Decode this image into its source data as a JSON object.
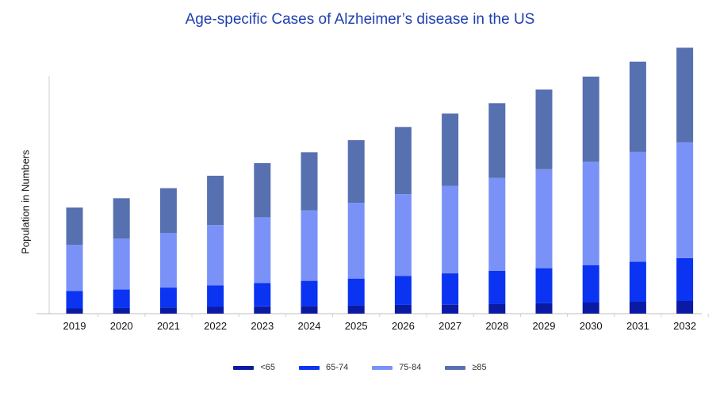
{
  "chart_data": {
    "type": "bar",
    "stacked": true,
    "title": "Age-specific Cases of Alzheimer’s disease in the US",
    "ylabel": "Population in Numbers",
    "xlabel": "",
    "categories": [
      "2019",
      "2020",
      "2021",
      "2022",
      "2023",
      "2024",
      "2025",
      "2026",
      "2027",
      "2028",
      "2029",
      "2030",
      "2031",
      "2032"
    ],
    "ylim": [
      0,
      100
    ],
    "grid": false,
    "legend_position": "bottom",
    "series": [
      {
        "name": "<65",
        "color": "#0a1aa3",
        "values": [
          2.0,
          2.2,
          2.4,
          2.6,
          2.8,
          3.0,
          3.2,
          3.4,
          3.6,
          3.8,
          4.0,
          4.3,
          4.6,
          4.9
        ]
      },
      {
        "name": "65-74",
        "color": "#0a33f2",
        "values": [
          6.8,
          7.2,
          7.7,
          8.3,
          9.0,
          9.7,
          10.4,
          11.2,
          12.0,
          12.8,
          13.6,
          14.5,
          15.5,
          16.6
        ]
      },
      {
        "name": "75-84",
        "color": "#7a92f8",
        "values": [
          17.8,
          19.7,
          21.2,
          23.4,
          25.5,
          27.3,
          29.3,
          31.7,
          33.9,
          35.9,
          38.3,
          40.0,
          42.5,
          44.9
        ]
      },
      {
        "name": "≥85",
        "color": "#5770b0",
        "values": [
          14.5,
          15.6,
          17.3,
          19.1,
          21.0,
          22.5,
          24.3,
          26.0,
          28.0,
          29.0,
          30.9,
          33.0,
          35.0,
          36.6
        ]
      }
    ]
  }
}
